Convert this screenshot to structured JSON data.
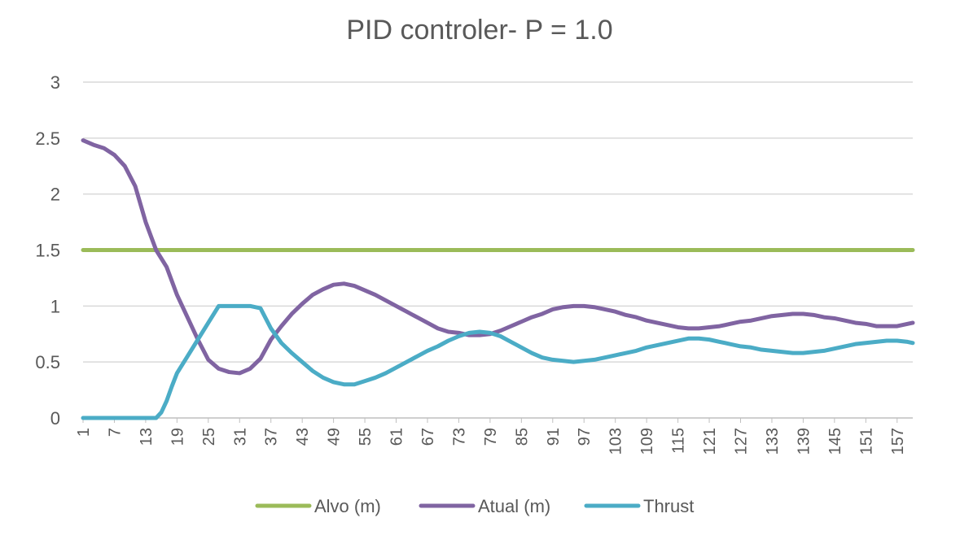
{
  "chart_data": {
    "type": "line",
    "title": "PID controler- P = 1.0",
    "xlabel": "",
    "ylabel": "",
    "ylim": [
      0,
      3
    ],
    "y_ticks": [
      "0",
      "0.5",
      "1",
      "1.5",
      "2",
      "2.5",
      "3"
    ],
    "x_tick_labels": [
      "1",
      "7",
      "13",
      "19",
      "25",
      "31",
      "37",
      "43",
      "49",
      "55",
      "61",
      "67",
      "73",
      "79",
      "85",
      "91",
      "97",
      "103",
      "109",
      "115",
      "121",
      "127",
      "133",
      "139",
      "145",
      "151",
      "157"
    ],
    "grid": "horizontal",
    "legend": "bottom",
    "x_range": [
      1,
      160
    ],
    "series": [
      {
        "name": "Alvo (m)",
        "color": "#9BBB59",
        "points": [
          [
            1,
            1.5
          ],
          [
            160,
            1.5
          ]
        ]
      },
      {
        "name": "Atual (m)",
        "color": "#8064A2",
        "points": [
          [
            1,
            2.48
          ],
          [
            3,
            2.44
          ],
          [
            5,
            2.41
          ],
          [
            7,
            2.35
          ],
          [
            9,
            2.25
          ],
          [
            11,
            2.07
          ],
          [
            13,
            1.75
          ],
          [
            15,
            1.5
          ],
          [
            17,
            1.35
          ],
          [
            19,
            1.1
          ],
          [
            21,
            0.9
          ],
          [
            23,
            0.7
          ],
          [
            25,
            0.52
          ],
          [
            27,
            0.44
          ],
          [
            29,
            0.41
          ],
          [
            31,
            0.4
          ],
          [
            33,
            0.44
          ],
          [
            35,
            0.53
          ],
          [
            37,
            0.7
          ],
          [
            39,
            0.82
          ],
          [
            41,
            0.93
          ],
          [
            43,
            1.02
          ],
          [
            45,
            1.1
          ],
          [
            47,
            1.15
          ],
          [
            49,
            1.19
          ],
          [
            51,
            1.2
          ],
          [
            53,
            1.18
          ],
          [
            55,
            1.14
          ],
          [
            57,
            1.1
          ],
          [
            59,
            1.05
          ],
          [
            61,
            1.0
          ],
          [
            63,
            0.95
          ],
          [
            65,
            0.9
          ],
          [
            67,
            0.85
          ],
          [
            69,
            0.8
          ],
          [
            71,
            0.77
          ],
          [
            73,
            0.76
          ],
          [
            75,
            0.74
          ],
          [
            77,
            0.74
          ],
          [
            79,
            0.75
          ],
          [
            81,
            0.78
          ],
          [
            83,
            0.82
          ],
          [
            85,
            0.86
          ],
          [
            87,
            0.9
          ],
          [
            89,
            0.93
          ],
          [
            91,
            0.97
          ],
          [
            93,
            0.99
          ],
          [
            95,
            1.0
          ],
          [
            97,
            1.0
          ],
          [
            99,
            0.99
          ],
          [
            101,
            0.97
          ],
          [
            103,
            0.95
          ],
          [
            105,
            0.92
          ],
          [
            107,
            0.9
          ],
          [
            109,
            0.87
          ],
          [
            111,
            0.85
          ],
          [
            113,
            0.83
          ],
          [
            115,
            0.81
          ],
          [
            117,
            0.8
          ],
          [
            119,
            0.8
          ],
          [
            121,
            0.81
          ],
          [
            123,
            0.82
          ],
          [
            125,
            0.84
          ],
          [
            127,
            0.86
          ],
          [
            129,
            0.87
          ],
          [
            131,
            0.89
          ],
          [
            133,
            0.91
          ],
          [
            135,
            0.92
          ],
          [
            137,
            0.93
          ],
          [
            139,
            0.93
          ],
          [
            141,
            0.92
          ],
          [
            143,
            0.9
          ],
          [
            145,
            0.89
          ],
          [
            147,
            0.87
          ],
          [
            149,
            0.85
          ],
          [
            151,
            0.84
          ],
          [
            153,
            0.82
          ],
          [
            155,
            0.82
          ],
          [
            157,
            0.82
          ],
          [
            159,
            0.84
          ],
          [
            160,
            0.85
          ]
        ]
      },
      {
        "name": "Thrust",
        "color": "#4BACC6",
        "points": [
          [
            1,
            0
          ],
          [
            15,
            0
          ],
          [
            16,
            0.05
          ],
          [
            17,
            0.15
          ],
          [
            18,
            0.28
          ],
          [
            19,
            0.4
          ],
          [
            21,
            0.55
          ],
          [
            23,
            0.7
          ],
          [
            25,
            0.85
          ],
          [
            27,
            1.0
          ],
          [
            29,
            1.0
          ],
          [
            31,
            1.0
          ],
          [
            33,
            1.0
          ],
          [
            35,
            0.98
          ],
          [
            37,
            0.8
          ],
          [
            39,
            0.67
          ],
          [
            41,
            0.58
          ],
          [
            43,
            0.5
          ],
          [
            45,
            0.42
          ],
          [
            47,
            0.36
          ],
          [
            49,
            0.32
          ],
          [
            51,
            0.3
          ],
          [
            53,
            0.3
          ],
          [
            55,
            0.33
          ],
          [
            57,
            0.36
          ],
          [
            59,
            0.4
          ],
          [
            61,
            0.45
          ],
          [
            63,
            0.5
          ],
          [
            65,
            0.55
          ],
          [
            67,
            0.6
          ],
          [
            69,
            0.64
          ],
          [
            71,
            0.69
          ],
          [
            73,
            0.73
          ],
          [
            75,
            0.76
          ],
          [
            77,
            0.77
          ],
          [
            79,
            0.76
          ],
          [
            81,
            0.73
          ],
          [
            83,
            0.68
          ],
          [
            85,
            0.63
          ],
          [
            87,
            0.58
          ],
          [
            89,
            0.54
          ],
          [
            91,
            0.52
          ],
          [
            93,
            0.51
          ],
          [
            95,
            0.5
          ],
          [
            97,
            0.51
          ],
          [
            99,
            0.52
          ],
          [
            101,
            0.54
          ],
          [
            103,
            0.56
          ],
          [
            105,
            0.58
          ],
          [
            107,
            0.6
          ],
          [
            109,
            0.63
          ],
          [
            111,
            0.65
          ],
          [
            113,
            0.67
          ],
          [
            115,
            0.69
          ],
          [
            117,
            0.71
          ],
          [
            119,
            0.71
          ],
          [
            121,
            0.7
          ],
          [
            123,
            0.68
          ],
          [
            125,
            0.66
          ],
          [
            127,
            0.64
          ],
          [
            129,
            0.63
          ],
          [
            131,
            0.61
          ],
          [
            133,
            0.6
          ],
          [
            135,
            0.59
          ],
          [
            137,
            0.58
          ],
          [
            139,
            0.58
          ],
          [
            141,
            0.59
          ],
          [
            143,
            0.6
          ],
          [
            145,
            0.62
          ],
          [
            147,
            0.64
          ],
          [
            149,
            0.66
          ],
          [
            151,
            0.67
          ],
          [
            153,
            0.68
          ],
          [
            155,
            0.69
          ],
          [
            157,
            0.69
          ],
          [
            159,
            0.68
          ],
          [
            160,
            0.67
          ]
        ]
      }
    ]
  }
}
